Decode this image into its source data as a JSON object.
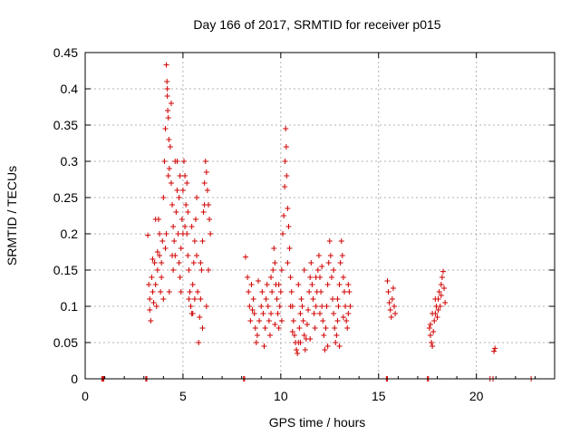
{
  "chart_data": {
    "type": "scatter",
    "title": "Day 166 of 2017, SRMTID for receiver p015",
    "xlabel": "GPS time / hours",
    "ylabel": "SRMTID / TECUs",
    "xlim": [
      0,
      24
    ],
    "ylim": [
      0,
      0.45
    ],
    "x_ticks": [
      0,
      5,
      10,
      15,
      20
    ],
    "y_ticks": [
      0,
      0.05,
      0.1,
      0.15,
      0.2,
      0.25,
      0.3,
      0.35,
      0.4,
      0.45
    ],
    "x_tick_labels": [
      "0",
      "5",
      "10",
      "15",
      "20"
    ],
    "y_tick_labels": [
      "0",
      "0.05",
      "0.1",
      "0.15",
      "0.2",
      "0.25",
      "0.3",
      "0.35",
      "0.4",
      "0.45"
    ],
    "grid": true,
    "marker": "+",
    "color": "#d00000",
    "series": [
      {
        "name": "SRMTID",
        "points": [
          [
            0.85,
            0.0
          ],
          [
            0.9,
            0.0
          ],
          [
            0.95,
            0.0
          ],
          [
            3.1,
            0.0
          ],
          [
            3.15,
            0.0
          ],
          [
            8.1,
            0.0
          ],
          [
            8.15,
            0.0
          ],
          [
            15.4,
            0.0
          ],
          [
            15.45,
            0.0
          ],
          [
            17.5,
            0.0
          ],
          [
            17.55,
            0.0
          ],
          [
            20.7,
            0.0
          ],
          [
            20.85,
            0.0
          ],
          [
            22.8,
            0.0
          ],
          [
            3.2,
            0.198
          ],
          [
            3.25,
            0.13
          ],
          [
            3.3,
            0.11
          ],
          [
            3.3,
            0.095
          ],
          [
            3.35,
            0.08
          ],
          [
            3.4,
            0.14
          ],
          [
            3.45,
            0.12
          ],
          [
            3.5,
            0.105
          ],
          [
            3.55,
            0.16
          ],
          [
            3.6,
            0.13
          ],
          [
            3.65,
            0.1
          ],
          [
            3.7,
            0.15
          ],
          [
            3.75,
            0.22
          ],
          [
            3.8,
            0.17
          ],
          [
            3.85,
            0.12
          ],
          [
            3.9,
            0.14
          ],
          [
            3.95,
            0.19
          ],
          [
            4.0,
            0.25
          ],
          [
            4.05,
            0.3
          ],
          [
            4.1,
            0.345
          ],
          [
            4.15,
            0.433
          ],
          [
            4.18,
            0.41
          ],
          [
            4.2,
            0.39
          ],
          [
            4.22,
            0.37
          ],
          [
            4.25,
            0.36
          ],
          [
            4.28,
            0.33
          ],
          [
            4.3,
            0.29
          ],
          [
            4.35,
            0.32
          ],
          [
            4.4,
            0.27
          ],
          [
            4.45,
            0.24
          ],
          [
            4.5,
            0.21
          ],
          [
            4.55,
            0.19
          ],
          [
            4.6,
            0.17
          ],
          [
            4.65,
            0.23
          ],
          [
            4.7,
            0.26
          ],
          [
            4.75,
            0.2
          ],
          [
            4.8,
            0.16
          ],
          [
            4.85,
            0.14
          ],
          [
            4.9,
            0.18
          ],
          [
            4.95,
            0.22
          ],
          [
            5.0,
            0.26
          ],
          [
            5.05,
            0.3
          ],
          [
            5.1,
            0.28
          ],
          [
            5.15,
            0.24
          ],
          [
            5.2,
            0.2
          ],
          [
            5.25,
            0.17
          ],
          [
            5.3,
            0.15
          ],
          [
            5.35,
            0.12
          ],
          [
            5.4,
            0.1
          ],
          [
            5.45,
            0.09
          ],
          [
            5.5,
            0.13
          ],
          [
            5.55,
            0.16
          ],
          [
            5.6,
            0.19
          ],
          [
            5.65,
            0.22
          ],
          [
            5.7,
            0.17
          ],
          [
            5.75,
            0.12
          ],
          [
            5.8,
            0.05
          ],
          [
            5.85,
            0.085
          ],
          [
            5.9,
            0.11
          ],
          [
            5.95,
            0.15
          ],
          [
            6.0,
            0.19
          ],
          [
            6.05,
            0.23
          ],
          [
            6.1,
            0.27
          ],
          [
            6.15,
            0.3
          ],
          [
            6.2,
            0.285
          ],
          [
            6.25,
            0.26
          ],
          [
            6.3,
            0.24
          ],
          [
            6.35,
            0.22
          ],
          [
            6.4,
            0.2
          ],
          [
            3.45,
            0.165
          ],
          [
            3.6,
            0.22
          ],
          [
            3.8,
            0.2
          ],
          [
            4.0,
            0.11
          ],
          [
            4.1,
            0.18
          ],
          [
            4.3,
            0.12
          ],
          [
            4.5,
            0.15
          ],
          [
            4.7,
            0.3
          ],
          [
            4.9,
            0.12
          ],
          [
            5.1,
            0.21
          ],
          [
            5.3,
            0.11
          ],
          [
            5.5,
            0.09
          ],
          [
            5.7,
            0.25
          ],
          [
            5.9,
            0.16
          ],
          [
            6.1,
            0.24
          ],
          [
            6.3,
            0.15
          ],
          [
            4.4,
            0.38
          ],
          [
            4.2,
            0.4
          ],
          [
            4.25,
            0.28
          ],
          [
            4.6,
            0.3
          ],
          [
            4.8,
            0.25
          ],
          [
            5.0,
            0.2
          ],
          [
            5.2,
            0.27
          ],
          [
            5.6,
            0.11
          ],
          [
            6.0,
            0.07
          ],
          [
            6.2,
            0.1
          ],
          [
            3.7,
            0.175
          ],
          [
            3.9,
            0.16
          ],
          [
            4.15,
            0.2
          ],
          [
            4.45,
            0.17
          ],
          [
            4.85,
            0.28
          ],
          [
            5.25,
            0.23
          ],
          [
            5.45,
            0.21
          ],
          [
            8.2,
            0.168
          ],
          [
            8.3,
            0.14
          ],
          [
            8.35,
            0.12
          ],
          [
            8.4,
            0.1
          ],
          [
            8.45,
            0.08
          ],
          [
            8.5,
            0.13
          ],
          [
            8.6,
            0.11
          ],
          [
            8.65,
            0.09
          ],
          [
            8.7,
            0.07
          ],
          [
            8.75,
            0.05
          ],
          [
            8.8,
            0.06
          ],
          [
            8.9,
            0.08
          ],
          [
            9.0,
            0.1
          ],
          [
            9.05,
            0.12
          ],
          [
            9.1,
            0.09
          ],
          [
            9.2,
            0.07
          ],
          [
            9.25,
            0.11
          ],
          [
            9.3,
            0.13
          ],
          [
            9.35,
            0.1
          ],
          [
            9.4,
            0.08
          ],
          [
            9.45,
            0.06
          ],
          [
            9.5,
            0.09
          ],
          [
            9.55,
            0.12
          ],
          [
            9.6,
            0.15
          ],
          [
            9.65,
            0.18
          ],
          [
            9.7,
            0.16
          ],
          [
            9.75,
            0.13
          ],
          [
            9.8,
            0.11
          ],
          [
            9.85,
            0.09
          ],
          [
            9.9,
            0.07
          ],
          [
            9.95,
            0.1
          ],
          [
            10.0,
            0.12
          ],
          [
            10.05,
            0.15
          ],
          [
            10.1,
            0.2
          ],
          [
            10.15,
            0.225
          ],
          [
            10.2,
            0.265
          ],
          [
            10.22,
            0.3
          ],
          [
            10.25,
            0.345
          ],
          [
            10.28,
            0.32
          ],
          [
            10.3,
            0.28
          ],
          [
            10.35,
            0.235
          ],
          [
            10.4,
            0.21
          ],
          [
            10.45,
            0.18
          ],
          [
            10.5,
            0.14
          ],
          [
            10.55,
            0.12
          ],
          [
            10.6,
            0.1
          ],
          [
            10.65,
            0.08
          ],
          [
            10.7,
            0.06
          ],
          [
            10.75,
            0.05
          ],
          [
            10.8,
            0.04
          ],
          [
            10.85,
            0.035
          ],
          [
            10.9,
            0.05
          ],
          [
            10.95,
            0.07
          ],
          [
            11.0,
            0.09
          ],
          [
            11.05,
            0.11
          ],
          [
            11.1,
            0.1
          ],
          [
            11.15,
            0.08
          ],
          [
            11.2,
            0.06
          ],
          [
            11.25,
            0.04
          ],
          [
            11.3,
            0.055
          ],
          [
            11.35,
            0.075
          ],
          [
            11.4,
            0.095
          ],
          [
            11.45,
            0.12
          ],
          [
            11.5,
            0.14
          ],
          [
            11.55,
            0.16
          ],
          [
            11.6,
            0.13
          ],
          [
            11.65,
            0.11
          ],
          [
            11.7,
            0.09
          ],
          [
            11.75,
            0.07
          ],
          [
            11.8,
            0.1
          ],
          [
            11.85,
            0.12
          ],
          [
            11.9,
            0.15
          ],
          [
            11.95,
            0.17
          ],
          [
            12.0,
            0.14
          ],
          [
            12.05,
            0.12
          ],
          [
            12.1,
            0.1
          ],
          [
            12.15,
            0.08
          ],
          [
            12.2,
            0.06
          ],
          [
            12.25,
            0.04
          ],
          [
            12.3,
            0.07
          ],
          [
            12.35,
            0.1
          ],
          [
            12.4,
            0.13
          ],
          [
            12.45,
            0.16
          ],
          [
            12.5,
            0.19
          ],
          [
            12.55,
            0.17
          ],
          [
            12.6,
            0.14
          ],
          [
            12.65,
            0.11
          ],
          [
            12.7,
            0.09
          ],
          [
            12.75,
            0.07
          ],
          [
            12.8,
            0.05
          ],
          [
            12.85,
            0.06
          ],
          [
            12.9,
            0.08
          ],
          [
            12.95,
            0.1
          ],
          [
            13.0,
            0.13
          ],
          [
            13.05,
            0.16
          ],
          [
            13.1,
            0.19
          ],
          [
            13.15,
            0.17
          ],
          [
            13.2,
            0.14
          ],
          [
            13.25,
            0.12
          ],
          [
            13.3,
            0.1
          ],
          [
            13.35,
            0.08
          ],
          [
            13.4,
            0.07
          ],
          [
            13.45,
            0.09
          ],
          [
            13.5,
            0.12
          ],
          [
            13.55,
            0.1
          ],
          [
            8.55,
            0.095
          ],
          [
            8.85,
            0.135
          ],
          [
            9.15,
            0.045
          ],
          [
            9.5,
            0.14
          ],
          [
            9.7,
            0.075
          ],
          [
            10.05,
            0.08
          ],
          [
            10.35,
            0.16
          ],
          [
            10.6,
            0.065
          ],
          [
            10.9,
            0.13
          ],
          [
            11.2,
            0.15
          ],
          [
            11.5,
            0.055
          ],
          [
            11.8,
            0.14
          ],
          [
            12.1,
            0.155
          ],
          [
            12.4,
            0.045
          ],
          [
            12.7,
            0.15
          ],
          [
            13.0,
            0.045
          ],
          [
            13.2,
            0.085
          ],
          [
            9.9,
            0.13
          ],
          [
            10.5,
            0.1
          ],
          [
            11.0,
            0.05
          ],
          [
            12.0,
            0.09
          ],
          [
            12.9,
            0.11
          ],
          [
            13.45,
            0.13
          ],
          [
            15.45,
            0.135
          ],
          [
            15.5,
            0.12
          ],
          [
            15.55,
            0.105
          ],
          [
            15.6,
            0.095
          ],
          [
            15.65,
            0.085
          ],
          [
            15.7,
            0.11
          ],
          [
            15.75,
            0.125
          ],
          [
            15.8,
            0.1
          ],
          [
            15.85,
            0.09
          ],
          [
            17.6,
            0.07
          ],
          [
            17.65,
            0.06
          ],
          [
            17.7,
            0.05
          ],
          [
            17.75,
            0.045
          ],
          [
            17.8,
            0.065
          ],
          [
            17.85,
            0.08
          ],
          [
            17.9,
            0.09
          ],
          [
            17.95,
            0.1
          ],
          [
            18.0,
            0.085
          ],
          [
            18.05,
            0.11
          ],
          [
            18.1,
            0.12
          ],
          [
            18.15,
            0.1
          ],
          [
            18.2,
            0.13
          ],
          [
            18.25,
            0.14
          ],
          [
            18.3,
            0.148
          ],
          [
            18.35,
            0.125
          ],
          [
            18.4,
            0.105
          ],
          [
            17.65,
            0.075
          ],
          [
            17.75,
            0.09
          ],
          [
            17.9,
            0.11
          ],
          [
            18.05,
            0.095
          ],
          [
            18.2,
            0.115
          ],
          [
            20.9,
            0.038
          ],
          [
            20.95,
            0.042
          ]
        ]
      }
    ]
  }
}
